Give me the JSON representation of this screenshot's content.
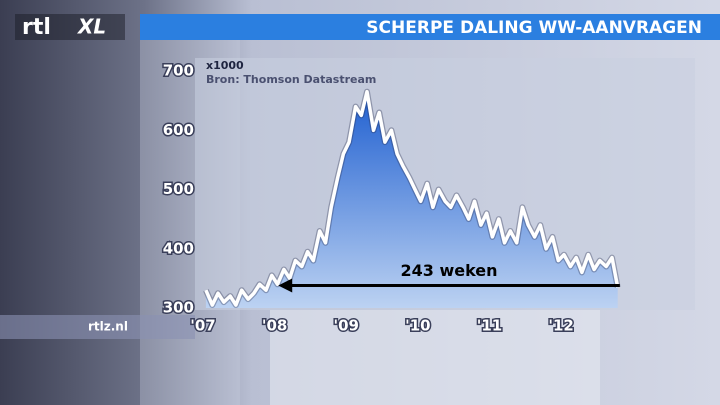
{
  "brand": {
    "logo_left": "rtl",
    "logo_right": "XL",
    "site": "rtlz.nl"
  },
  "chart_data": {
    "type": "area-line",
    "title": "SCHERPE DALING WW-AANVRAGEN",
    "y_unit": "x1000",
    "source": "Bron: Thomson Datastream",
    "x": [
      2007.04,
      2007.13,
      2007.21,
      2007.29,
      2007.38,
      2007.46,
      2007.54,
      2007.63,
      2007.71,
      2007.79,
      2007.88,
      2007.96,
      2008.04,
      2008.13,
      2008.21,
      2008.29,
      2008.38,
      2008.46,
      2008.54,
      2008.63,
      2008.71,
      2008.79,
      2008.88,
      2008.96,
      2009.04,
      2009.13,
      2009.21,
      2009.29,
      2009.38,
      2009.46,
      2009.54,
      2009.63,
      2009.71,
      2009.79,
      2009.88,
      2009.96,
      2010.04,
      2010.13,
      2010.21,
      2010.29,
      2010.38,
      2010.46,
      2010.54,
      2010.63,
      2010.71,
      2010.79,
      2010.88,
      2010.96,
      2011.04,
      2011.13,
      2011.21,
      2011.29,
      2011.38,
      2011.46,
      2011.54,
      2011.63,
      2011.71,
      2011.79,
      2011.88,
      2011.96,
      2012.04,
      2012.13,
      2012.21,
      2012.29,
      2012.38,
      2012.46,
      2012.54,
      2012.63,
      2012.71,
      2012.79
    ],
    "values": [
      330,
      305,
      325,
      310,
      320,
      305,
      330,
      315,
      325,
      340,
      330,
      355,
      340,
      365,
      350,
      380,
      370,
      395,
      380,
      430,
      410,
      470,
      520,
      560,
      580,
      640,
      625,
      665,
      600,
      630,
      580,
      600,
      560,
      540,
      520,
      500,
      480,
      510,
      470,
      500,
      480,
      470,
      490,
      470,
      450,
      480,
      440,
      460,
      420,
      450,
      410,
      430,
      410,
      470,
      440,
      420,
      440,
      400,
      420,
      380,
      390,
      370,
      385,
      360,
      390,
      365,
      380,
      370,
      385,
      335
    ],
    "xlim": [
      2007,
      2012.85
    ],
    "ylim": [
      300,
      700
    ],
    "xticks": [
      {
        "value": 2007,
        "label": "'07"
      },
      {
        "value": 2008,
        "label": "'08"
      },
      {
        "value": 2009,
        "label": "'09"
      },
      {
        "value": 2010,
        "label": "'10"
      },
      {
        "value": 2011,
        "label": "'11"
      },
      {
        "value": 2012,
        "label": "'12"
      }
    ],
    "yticks": [
      300,
      400,
      500,
      600,
      700
    ],
    "annotation": {
      "text": "243 weken",
      "x": [
        2008.05,
        2012.82
      ],
      "y": 338
    },
    "color": "#2f6fd8"
  }
}
